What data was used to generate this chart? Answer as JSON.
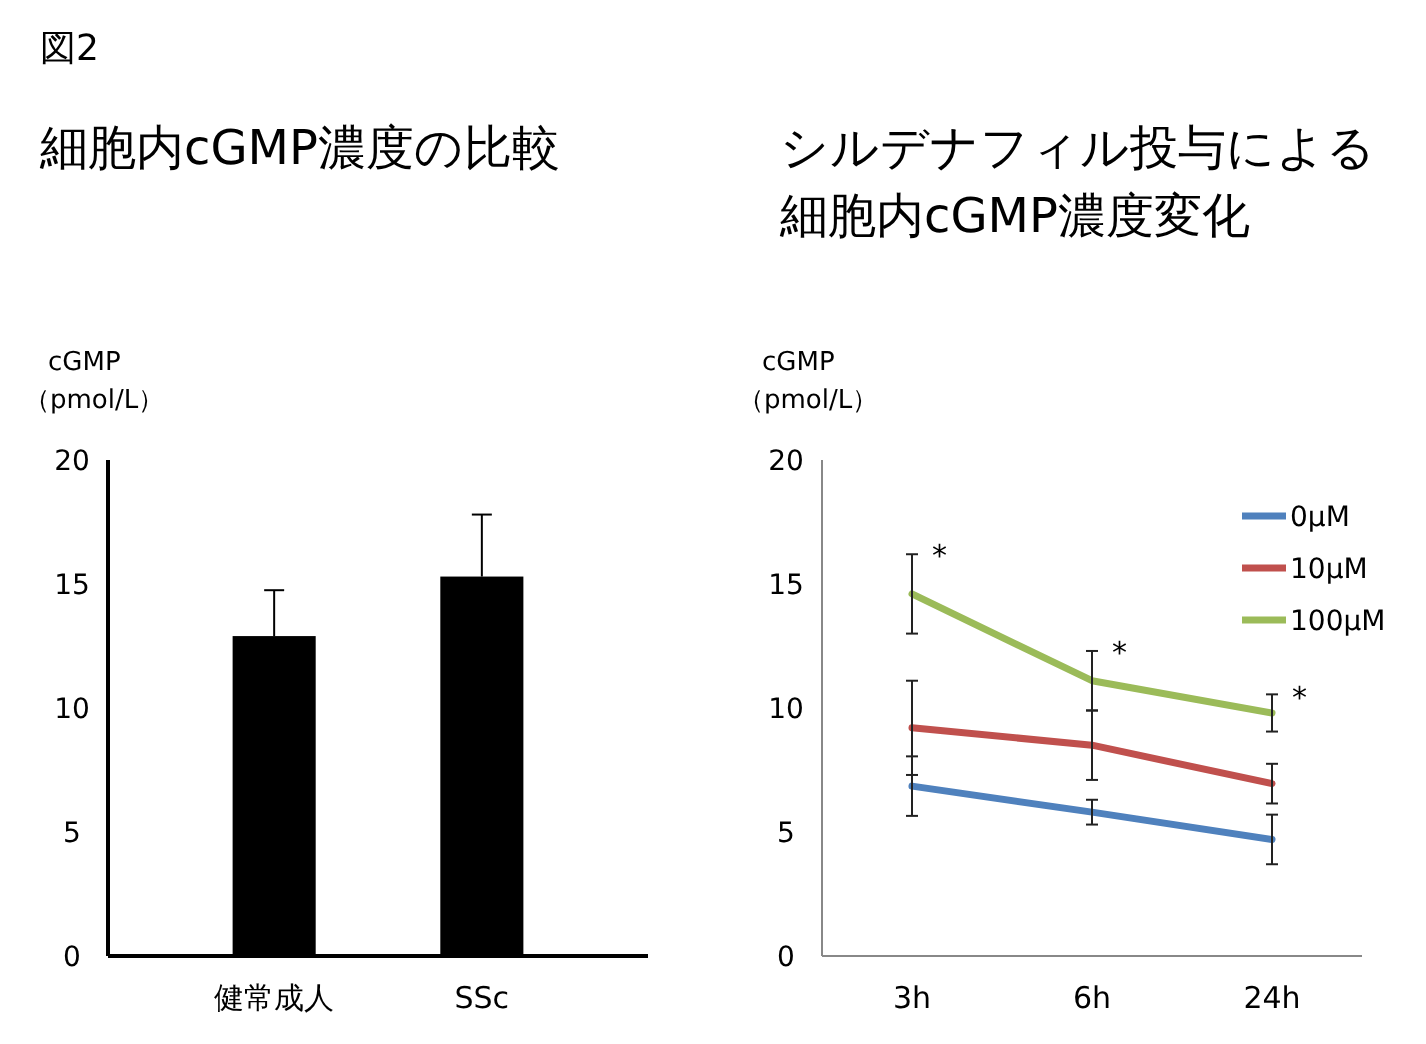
{
  "chart_data": [
    {
      "type": "bar",
      "title": "細胞内cGMP濃度の比較",
      "ylabel": "cGMP\n（pmol/L）",
      "categories": [
        "健常成人",
        "SSc"
      ],
      "values": [
        12.9,
        15.3
      ],
      "color": "#000000",
      "errors": [
        [
          12.9,
          14.75
        ],
        [
          15.3,
          17.8
        ]
      ],
      "ylim": [
        0,
        20
      ],
      "yticks": [
        0,
        5,
        10,
        15,
        20
      ],
      "grid": false,
      "legend": false,
      "annotations": [
        "図2"
      ]
    },
    {
      "type": "line",
      "title": "シルデナフィル投与による細胞内cGMP濃度変化",
      "ylabel": "cGMP\n（pmol/L）",
      "categories": [
        "3h",
        "6h",
        "24h"
      ],
      "ylim": [
        0,
        20
      ],
      "yticks": [
        0,
        5,
        10,
        15,
        20
      ],
      "grid": false,
      "legend": "top right",
      "marker": "none",
      "line_style": "solid",
      "series": [
        {
          "name": "0μM",
          "color": "#4f81bd",
          "values": [
            6.85,
            5.8,
            4.7
          ],
          "errors": [
            1.2,
            0.5,
            1.0
          ]
        },
        {
          "name": "10μM",
          "color": "#c0504d",
          "values": [
            9.2,
            8.5,
            6.95
          ],
          "errors": [
            1.9,
            1.4,
            0.8
          ]
        },
        {
          "name": "100μM",
          "color": "#9bbb59",
          "values": [
            14.6,
            11.1,
            9.8
          ],
          "errors": [
            1.6,
            1.2,
            0.75
          ]
        }
      ],
      "annotations": [
        {
          "text": "*",
          "x": "3h",
          "y": 16.2
        },
        {
          "text": "*",
          "x": "6h",
          "y": 12.3
        },
        {
          "text": "*",
          "x": "24h",
          "y": 10.5
        }
      ]
    }
  ]
}
